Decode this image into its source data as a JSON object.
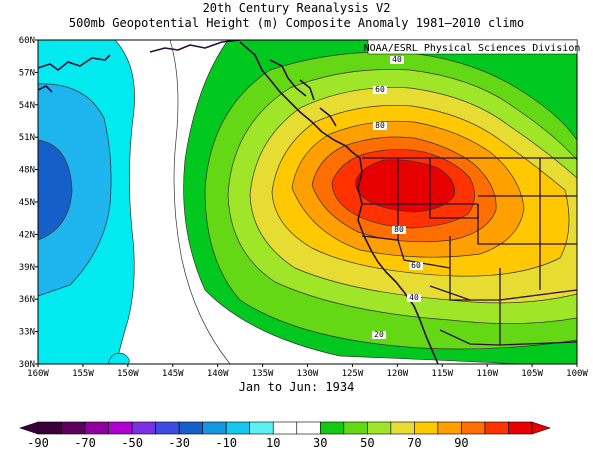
{
  "title_line1": "20th Century Reanalysis V2",
  "title_line2": "500mb Geopotential Height (m) Composite Anomaly 1981–2010 climo",
  "credit": "NOAA/ESRL Physical Sciences Division",
  "period_label": "Jan to Jun: 1934",
  "map": {
    "lon_range": [
      -160,
      -100
    ],
    "lat_range": [
      30,
      60
    ],
    "lon_labels": [
      "160W",
      "155W",
      "150W",
      "145W",
      "140W",
      "135W",
      "130W",
      "125W",
      "120W",
      "115W",
      "110W",
      "105W",
      "100W"
    ],
    "lat_labels": [
      "30N",
      "33N",
      "36N",
      "39N",
      "42N",
      "45N",
      "48N",
      "51N",
      "54N",
      "57N",
      "60N"
    ],
    "contour_labels": [
      "40",
      "60",
      "80",
      "80",
      "60",
      "40",
      "20"
    ]
  },
  "colorbar": {
    "labels": [
      "-90",
      "-70",
      "-50",
      "-30",
      "-10",
      "10",
      "30",
      "50",
      "70",
      "90"
    ],
    "colors": [
      "#3a003a",
      "#5a005a",
      "#8f00a0",
      "#b000d0",
      "#7a30e0",
      "#3c4ce0",
      "#1460c8",
      "#1496e0",
      "#14c8f0",
      "#5cf0f0",
      "#ffffff",
      "#ffffff",
      "#14c814",
      "#64d814",
      "#a0e628",
      "#e6dc32",
      "#ffc800",
      "#ffa000",
      "#ff6e00",
      "#ff3200",
      "#e60000"
    ],
    "extend_left_color": "#3a003a",
    "extend_right_color": "#e60000"
  }
}
